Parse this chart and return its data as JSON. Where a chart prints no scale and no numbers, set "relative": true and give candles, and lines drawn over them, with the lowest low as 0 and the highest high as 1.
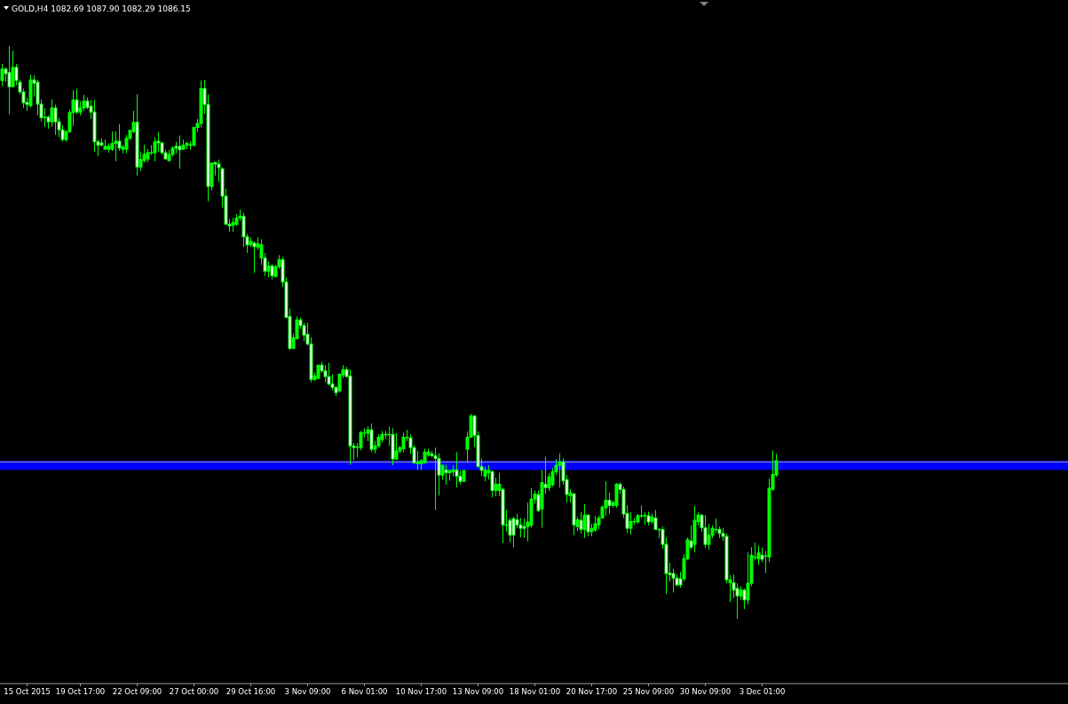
{
  "chart_data": {
    "type": "candlestick",
    "title": "GOLD,H4 1082.69 1087.90 1082.29 1086.15",
    "relative": true,
    "color": "#00ff00",
    "categories": [
      null,
      null,
      null,
      null,
      null,
      null,
      null,
      "15 Oct 2015",
      null,
      null,
      null,
      null,
      null,
      null,
      null,
      null,
      null,
      null,
      null,
      null,
      null,
      null,
      "19 Oct 17:00",
      null,
      null,
      null,
      null,
      null,
      null,
      null,
      null,
      null,
      null,
      null,
      null,
      null,
      null,
      null,
      "22 Oct 09:00",
      null,
      null,
      null,
      null,
      null,
      null,
      null,
      null,
      null,
      null,
      null,
      null,
      null,
      null,
      null,
      "27 Oct 00:00",
      null,
      null,
      null,
      null,
      null,
      null,
      null,
      null,
      null,
      null,
      null,
      null,
      null,
      null,
      null,
      "29 Oct 16:00",
      null,
      null,
      null,
      null,
      null,
      null,
      null,
      null,
      null,
      null,
      null,
      null,
      null,
      null,
      null,
      "3 Nov 09:00",
      null,
      null,
      null,
      null,
      null,
      null,
      null,
      null,
      null,
      null,
      null,
      null,
      null,
      null,
      null,
      "6 Nov 01:00",
      null,
      null,
      null,
      null,
      null,
      null,
      null,
      null,
      null,
      null,
      null,
      null,
      null,
      null,
      null,
      "10 Nov 17:00",
      null,
      null,
      null,
      null,
      null,
      null,
      null,
      null,
      null,
      null,
      null,
      null,
      null,
      null,
      null,
      "13 Nov 09:00",
      null,
      null,
      null,
      null,
      null,
      null,
      null,
      null,
      null,
      null,
      null,
      null,
      null,
      null,
      null,
      "18 Nov 01:00",
      null,
      null,
      null,
      null,
      null,
      null,
      null,
      null,
      null,
      null,
      null,
      null,
      null,
      null,
      null,
      "20 Nov 17:00",
      null,
      null,
      null,
      null,
      null,
      null,
      null,
      null,
      null,
      null,
      null,
      null,
      null,
      null,
      null,
      "25 Nov 09:00",
      null,
      null,
      null,
      null,
      null,
      null,
      null,
      null,
      null,
      null,
      null,
      null,
      null,
      null,
      null,
      "30 Nov 09:00",
      null,
      null,
      null,
      null,
      null,
      null,
      null,
      null,
      null,
      null,
      null,
      null,
      null,
      null,
      null,
      "3 Dec 01:00",
      null,
      null,
      null,
      null
    ],
    "ohlc": [
      [
        0.94,
        0.969,
        0.93,
        0.96
      ],
      [
        0.96,
        0.963,
        0.938,
        0.952
      ],
      [
        0.954,
        1,
        0.881,
        0.929
      ],
      [
        0.929,
        0.992,
        0.929,
        0.963
      ],
      [
        0.963,
        0.969,
        0.932,
        0.94
      ],
      [
        0.937,
        0.941,
        0.916,
        0.92
      ],
      [
        0.92,
        0.926,
        0.892,
        0.901
      ],
      [
        0.902,
        0.91,
        0.887,
        0.898
      ],
      [
        0.896,
        0.95,
        0.893,
        0.941
      ],
      [
        0.941,
        0.949,
        0.912,
        0.935
      ],
      [
        0.937,
        0.941,
        0.879,
        0.899
      ],
      [
        0.899,
        0.907,
        0.868,
        0.875
      ],
      [
        0.876,
        0.892,
        0.859,
        0.875
      ],
      [
        0.876,
        0.879,
        0.856,
        0.868
      ],
      [
        0.868,
        0.907,
        0.859,
        0.892
      ],
      [
        0.892,
        0.898,
        0.845,
        0.868
      ],
      [
        0.868,
        0.875,
        0.841,
        0.854
      ],
      [
        0.854,
        0.862,
        0.833,
        0.837
      ],
      [
        0.837,
        0.853,
        0.833,
        0.851
      ],
      [
        0.851,
        0.889,
        0.848,
        0.884
      ],
      [
        0.884,
        0.923,
        0.861,
        0.906
      ],
      [
        0.906,
        0.926,
        0.881,
        0.885
      ],
      [
        0.885,
        0.904,
        0.879,
        0.892
      ],
      [
        0.892,
        0.915,
        0.887,
        0.904
      ],
      [
        0.904,
        0.91,
        0.89,
        0.893
      ],
      [
        0.895,
        0.906,
        0.873,
        0.885
      ],
      [
        0.885,
        0.906,
        0.816,
        0.833
      ],
      [
        0.833,
        0.837,
        0.808,
        0.827
      ],
      [
        0.831,
        0.839,
        0.825,
        0.827
      ],
      [
        0.82,
        0.837,
        0.819,
        0.825
      ],
      [
        0.82,
        0.83,
        0.814,
        0.825
      ],
      [
        0.82,
        0.851,
        0.817,
        0.83
      ],
      [
        0.83,
        0.851,
        0.799,
        0.834
      ],
      [
        0.834,
        0.864,
        0.817,
        0.822
      ],
      [
        0.82,
        0.828,
        0.813,
        0.824
      ],
      [
        0.82,
        0.845,
        0.813,
        0.839
      ],
      [
        0.839,
        0.854,
        0.836,
        0.853
      ],
      [
        0.851,
        0.887,
        0.848,
        0.867
      ],
      [
        0.867,
        0.916,
        0.774,
        0.789
      ],
      [
        0.789,
        0.816,
        0.782,
        0.802
      ],
      [
        0.8,
        0.828,
        0.797,
        0.811
      ],
      [
        0.803,
        0.82,
        0.797,
        0.814
      ],
      [
        0.814,
        0.827,
        0.81,
        0.814
      ],
      [
        0.814,
        0.841,
        0.799,
        0.833
      ],
      [
        0.834,
        0.85,
        0.816,
        0.831
      ],
      [
        0.831,
        0.833,
        0.81,
        0.814
      ],
      [
        0.814,
        0.819,
        0.802,
        0.803
      ],
      [
        0.8,
        0.819,
        0.799,
        0.811
      ],
      [
        0.811,
        0.825,
        0.807,
        0.822
      ],
      [
        0.825,
        0.833,
        0.813,
        0.822
      ],
      [
        0.825,
        0.844,
        0.786,
        0.819
      ],
      [
        0.82,
        0.837,
        0.819,
        0.827
      ],
      [
        0.827,
        0.833,
        0.82,
        0.83
      ],
      [
        0.827,
        0.834,
        0.819,
        0.828
      ],
      [
        0.827,
        0.859,
        0.825,
        0.858
      ],
      [
        0.858,
        0.873,
        0.85,
        0.865
      ],
      [
        0.865,
        0.94,
        0.858,
        0.926
      ],
      [
        0.926,
        0.941,
        0.882,
        0.898
      ],
      [
        0.898,
        0.916,
        0.729,
        0.755
      ],
      [
        0.755,
        0.797,
        0.748,
        0.796
      ],
      [
        0.797,
        0.797,
        0.774,
        0.794
      ],
      [
        0.794,
        0.802,
        0.763,
        0.788
      ],
      [
        0.786,
        0.788,
        0.718,
        0.738
      ],
      [
        0.738,
        0.751,
        0.687,
        0.689
      ],
      [
        0.689,
        0.698,
        0.676,
        0.686
      ],
      [
        0.687,
        0.7,
        0.676,
        0.692
      ],
      [
        0.689,
        0.707,
        0.686,
        0.7
      ],
      [
        0.7,
        0.715,
        0.695,
        0.703
      ],
      [
        0.703,
        0.709,
        0.649,
        0.667
      ],
      [
        0.667,
        0.672,
        0.639,
        0.653
      ],
      [
        0.653,
        0.666,
        0.649,
        0.659
      ],
      [
        0.656,
        0.659,
        0.604,
        0.65
      ],
      [
        0.649,
        0.666,
        0.644,
        0.655
      ],
      [
        0.63,
        0.663,
        0.618,
        0.653
      ],
      [
        0.63,
        0.639,
        0.599,
        0.607
      ],
      [
        0.607,
        0.624,
        0.596,
        0.616
      ],
      [
        0.616,
        0.619,
        0.593,
        0.599
      ],
      [
        0.598,
        0.618,
        0.596,
        0.615
      ],
      [
        0.615,
        0.635,
        0.611,
        0.627
      ],
      [
        0.627,
        0.632,
        0.58,
        0.588
      ],
      [
        0.588,
        0.596,
        0.525,
        0.526
      ],
      [
        0.528,
        0.542,
        0.469,
        0.472
      ],
      [
        0.472,
        0.498,
        0.472,
        0.491
      ],
      [
        0.489,
        0.528,
        0.488,
        0.522
      ],
      [
        0.522,
        0.526,
        0.506,
        0.512
      ],
      [
        0.512,
        0.517,
        0.485,
        0.495
      ],
      [
        0.497,
        0.517,
        0.477,
        0.48
      ],
      [
        0.48,
        0.492,
        0.413,
        0.418
      ],
      [
        0.418,
        0.43,
        0.415,
        0.424
      ],
      [
        0.42,
        0.443,
        0.418,
        0.443
      ],
      [
        0.443,
        0.449,
        0.429,
        0.433
      ],
      [
        0.433,
        0.443,
        0.413,
        0.423
      ],
      [
        0.423,
        0.447,
        0.407,
        0.41
      ],
      [
        0.41,
        0.427,
        0.399,
        0.404
      ],
      [
        0.404,
        0.407,
        0.389,
        0.395
      ],
      [
        0.398,
        0.429,
        0.395,
        0.427
      ],
      [
        0.426,
        0.443,
        0.42,
        0.435
      ],
      [
        0.435,
        0.44,
        0.421,
        0.423
      ],
      [
        0.424,
        0.435,
        0.269,
        0.302
      ],
      [
        0.302,
        0.307,
        0.277,
        0.299
      ],
      [
        0.3,
        0.307,
        0.282,
        0.3
      ],
      [
        0.299,
        0.328,
        0.294,
        0.325
      ],
      [
        0.325,
        0.333,
        0.317,
        0.325
      ],
      [
        0.324,
        0.336,
        0.31,
        0.33
      ],
      [
        0.33,
        0.341,
        0.291,
        0.296
      ],
      [
        0.296,
        0.31,
        0.289,
        0.302
      ],
      [
        0.302,
        0.322,
        0.299,
        0.317
      ],
      [
        0.313,
        0.328,
        0.308,
        0.322
      ],
      [
        0.322,
        0.328,
        0.314,
        0.322
      ],
      [
        0.322,
        0.336,
        0.302,
        0.322
      ],
      [
        0.322,
        0.333,
        0.268,
        0.279
      ],
      [
        0.279,
        0.324,
        0.277,
        0.293
      ],
      [
        0.293,
        0.302,
        0.289,
        0.299
      ],
      [
        0.297,
        0.325,
        0.291,
        0.317
      ],
      [
        0.317,
        0.33,
        0.31,
        0.317
      ],
      [
        0.316,
        0.322,
        0.288,
        0.299
      ],
      [
        0.299,
        0.303,
        0.271,
        0.272
      ],
      [
        0.271,
        0.293,
        0.26,
        0.274
      ],
      [
        0.271,
        0.279,
        0.26,
        0.276
      ],
      [
        0.272,
        0.297,
        0.271,
        0.291
      ],
      [
        0.286,
        0.297,
        0.283,
        0.291
      ],
      [
        0.288,
        0.293,
        0.282,
        0.285
      ],
      [
        0.285,
        0.299,
        0.19,
        0.28
      ],
      [
        0.28,
        0.289,
        0.215,
        0.251
      ],
      [
        0.251,
        0.269,
        0.243,
        0.268
      ],
      [
        0.26,
        0.269,
        0.234,
        0.255
      ],
      [
        0.255,
        0.26,
        0.241,
        0.259
      ],
      [
        0.257,
        0.268,
        0.249,
        0.26
      ],
      [
        0.26,
        0.291,
        0.229,
        0.249
      ],
      [
        0.249,
        0.259,
        0.235,
        0.24
      ],
      [
        0.24,
        0.259,
        0.24,
        0.259
      ],
      [
        0.296,
        0.327,
        0.272,
        0.317
      ],
      [
        0.317,
        0.358,
        0.316,
        0.354
      ],
      [
        0.354,
        0.356,
        0.3,
        0.32
      ],
      [
        0.32,
        0.327,
        0.263,
        0.266
      ],
      [
        0.266,
        0.28,
        0.249,
        0.259
      ],
      [
        0.249,
        0.265,
        0.24,
        0.26
      ],
      [
        0.255,
        0.268,
        0.243,
        0.259
      ],
      [
        0.257,
        0.259,
        0.212,
        0.224
      ],
      [
        0.224,
        0.246,
        0.214,
        0.235
      ],
      [
        0.224,
        0.255,
        0.214,
        0.235
      ],
      [
        0.226,
        0.229,
        0.132,
        0.164
      ],
      [
        0.164,
        0.19,
        0.152,
        0.164
      ],
      [
        0.172,
        0.176,
        0.133,
        0.146
      ],
      [
        0.175,
        0.178,
        0.125,
        0.146
      ],
      [
        0.173,
        0.183,
        0.158,
        0.164
      ],
      [
        0.164,
        0.176,
        0.142,
        0.158
      ],
      [
        0.161,
        0.175,
        0.141,
        0.158
      ],
      [
        0.161,
        0.203,
        0.135,
        0.169
      ],
      [
        0.163,
        0.228,
        0.159,
        0.209
      ],
      [
        0.209,
        0.224,
        0.201,
        0.218
      ],
      [
        0.217,
        0.224,
        0.186,
        0.189
      ],
      [
        0.192,
        0.26,
        0.159,
        0.238
      ],
      [
        0.235,
        0.283,
        0.218,
        0.229
      ],
      [
        0.229,
        0.254,
        0.223,
        0.248
      ],
      [
        0.234,
        0.263,
        0.231,
        0.257
      ],
      [
        0.257,
        0.279,
        0.251,
        0.268
      ],
      [
        0.268,
        0.289,
        0.229,
        0.274
      ],
      [
        0.274,
        0.28,
        0.234,
        0.241
      ],
      [
        0.243,
        0.251,
        0.203,
        0.217
      ],
      [
        0.215,
        0.226,
        0.203,
        0.22
      ],
      [
        0.218,
        0.22,
        0.146,
        0.164
      ],
      [
        0.161,
        0.178,
        0.153,
        0.173
      ],
      [
        0.172,
        0.186,
        0.149,
        0.156
      ],
      [
        0.156,
        0.2,
        0.141,
        0.181
      ],
      [
        0.181,
        0.183,
        0.144,
        0.152
      ],
      [
        0.152,
        0.166,
        0.144,
        0.158
      ],
      [
        0.155,
        0.18,
        0.152,
        0.166
      ],
      [
        0.164,
        0.18,
        0.156,
        0.176
      ],
      [
        0.176,
        0.198,
        0.175,
        0.195
      ],
      [
        0.194,
        0.24,
        0.18,
        0.207
      ],
      [
        0.207,
        0.22,
        0.183,
        0.198
      ],
      [
        0.198,
        0.206,
        0.194,
        0.203
      ],
      [
        0.198,
        0.237,
        0.194,
        0.235
      ],
      [
        0.235,
        0.238,
        0.218,
        0.226
      ],
      [
        0.226,
        0.231,
        0.176,
        0.183
      ],
      [
        0.184,
        0.198,
        0.15,
        0.158
      ],
      [
        0.158,
        0.186,
        0.147,
        0.17
      ],
      [
        0.17,
        0.176,
        0.164,
        0.17
      ],
      [
        0.169,
        0.183,
        0.166,
        0.18
      ],
      [
        0.18,
        0.198,
        0.176,
        0.18
      ],
      [
        0.181,
        0.186,
        0.164,
        0.18
      ],
      [
        0.18,
        0.187,
        0.163,
        0.169
      ],
      [
        0.17,
        0.183,
        0.166,
        0.178
      ],
      [
        0.176,
        0.19,
        0.155,
        0.156
      ],
      [
        0.156,
        0.158,
        0.141,
        0.156
      ],
      [
        0.156,
        0.161,
        0.122,
        0.13
      ],
      [
        0.13,
        0.142,
        0.043,
        0.079
      ],
      [
        0.08,
        0.098,
        0.065,
        0.077
      ],
      [
        0.079,
        0.087,
        0.046,
        0.071
      ],
      [
        0.071,
        0.077,
        0.057,
        0.059
      ],
      [
        0.07,
        0.082,
        0.054,
        0.059
      ],
      [
        0.07,
        0.113,
        0.065,
        0.105
      ],
      [
        0.105,
        0.142,
        0.102,
        0.138
      ],
      [
        0.136,
        0.163,
        0.121,
        0.125
      ],
      [
        0.13,
        0.197,
        0.116,
        0.172
      ],
      [
        0.17,
        0.186,
        0.163,
        0.181
      ],
      [
        0.181,
        0.183,
        0.152,
        0.159
      ],
      [
        0.159,
        0.181,
        0.124,
        0.13
      ],
      [
        0.13,
        0.166,
        0.121,
        0.146
      ],
      [
        0.146,
        0.163,
        0.141,
        0.158
      ],
      [
        0.156,
        0.175,
        0.15,
        0.156
      ],
      [
        0.156,
        0.161,
        0.141,
        0.149
      ],
      [
        0.149,
        0.159,
        0.136,
        0.144
      ],
      [
        0.144,
        0.149,
        0.062,
        0.068
      ],
      [
        0.063,
        0.076,
        0.029,
        0.068
      ],
      [
        0.063,
        0.077,
        0.036,
        0.05
      ],
      [
        0.053,
        0.062,
        0,
        0.04
      ],
      [
        0.04,
        0.057,
        0.033,
        0.05
      ],
      [
        0.05,
        0.053,
        0.017,
        0.033
      ],
      [
        0.033,
        0.116,
        0.025,
        0.062
      ],
      [
        0.062,
        0.125,
        0.057,
        0.111
      ],
      [
        0.108,
        0.133,
        0.102,
        0.108
      ],
      [
        0.105,
        0.128,
        0.094,
        0.115
      ],
      [
        0.111,
        0.124,
        0.099,
        0.104
      ],
      [
        0.11,
        0.118,
        0.08,
        0.11
      ],
      [
        0.108,
        0.245,
        0.099,
        0.228
      ],
      [
        0.226,
        0.294,
        0.224,
        0.252
      ],
      [
        0.251,
        0.288,
        0.248,
        0.276
      ]
    ],
    "ref_lines": [
      {
        "axis": "y",
        "value": 0.274,
        "color": "#a0a0a0"
      }
    ],
    "bands": [
      {
        "axis": "y",
        "from": 0.26,
        "to": 0.276,
        "color": "#0000ff"
      }
    ]
  }
}
